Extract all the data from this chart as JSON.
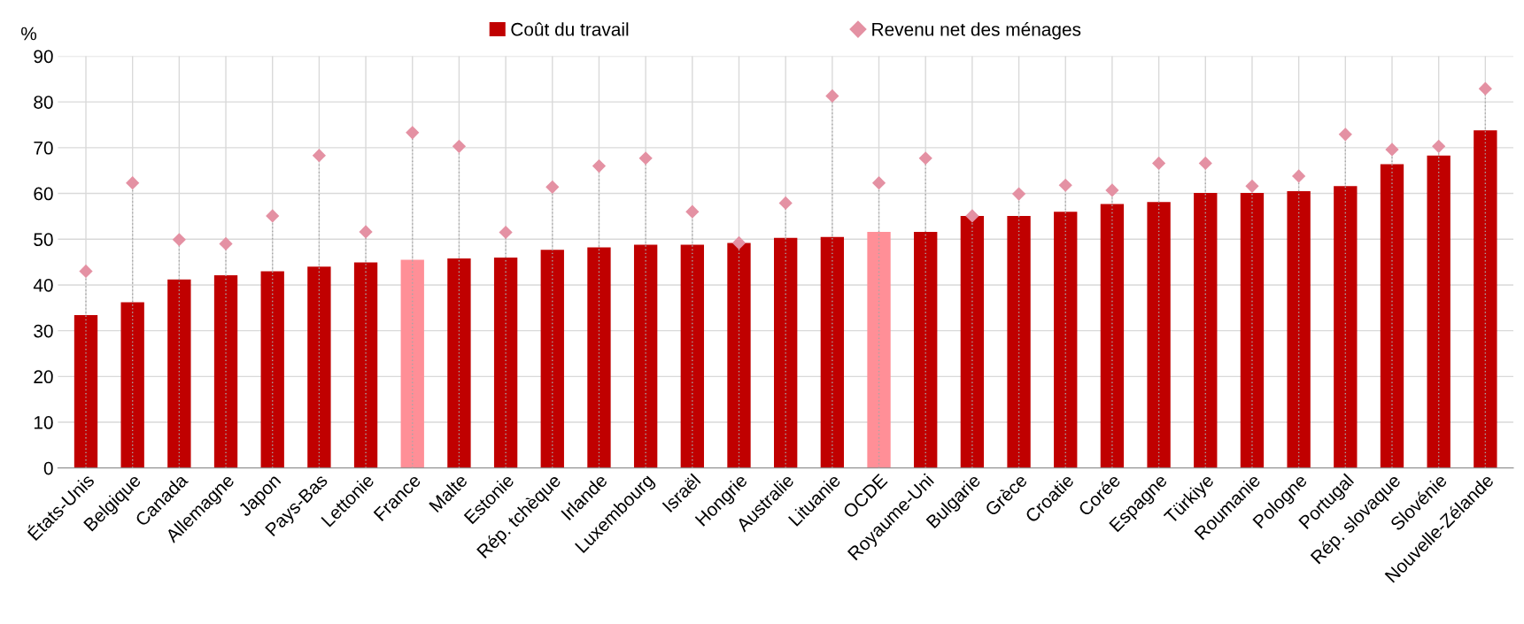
{
  "chart_data": {
    "type": "bar",
    "ylabel": "%",
    "categories": [
      "États-Unis",
      "Belgique",
      "Canada",
      "Allemagne",
      "Japon",
      "Pays-Bas",
      "Lettonie",
      "France",
      "Malte",
      "Estonie",
      "Rép. tchèque",
      "Irlande",
      "Luxembourg",
      "Israël",
      "Hongrie",
      "Australie",
      "Lituanie",
      "OCDE",
      "Royaume-Uni",
      "Bulgarie",
      "Grèce",
      "Croatie",
      "Corée",
      "Espagne",
      "Türkiye",
      "Roumanie",
      "Pologne",
      "Portugal",
      "Rép. slovaque",
      "Slovénie",
      "Nouvelle-Zélande"
    ],
    "series": [
      {
        "name": "Coût du travail",
        "color": "#c00000",
        "colors": [
          "#c00000",
          "#c00000",
          "#c00000",
          "#c00000",
          "#c00000",
          "#c00000",
          "#c00000",
          "#ff8f97",
          "#c00000",
          "#c00000",
          "#c00000",
          "#c00000",
          "#c00000",
          "#c00000",
          "#c00000",
          "#c00000",
          "#c00000",
          "#ff8f97",
          "#c00000",
          "#c00000",
          "#c00000",
          "#c00000",
          "#c00000",
          "#c00000",
          "#c00000",
          "#c00000",
          "#c00000",
          "#c00000",
          "#c00000",
          "#c00000",
          "#c00000"
        ],
        "values": [
          33.4,
          36.2,
          41.2,
          42.1,
          43.0,
          44.0,
          44.9,
          45.5,
          45.8,
          46.0,
          47.7,
          48.2,
          48.8,
          48.8,
          49.2,
          50.3,
          50.5,
          51.6,
          51.6,
          55.1,
          55.1,
          56.0,
          57.7,
          58.1,
          60.1,
          60.1,
          60.5,
          61.6,
          66.4,
          68.3,
          73.8
        ]
      },
      {
        "name": "Revenu net des ménages",
        "type": "scatter",
        "marker": "diamond",
        "color": "#e491a3",
        "values": [
          43.0,
          62.3,
          49.9,
          49.0,
          55.1,
          68.3,
          51.6,
          73.3,
          70.3,
          51.5,
          61.4,
          66.0,
          67.7,
          56.0,
          49.2,
          57.9,
          81.3,
          62.3,
          67.7,
          55.1,
          59.9,
          61.8,
          60.7,
          66.6,
          66.6,
          61.6,
          63.8,
          72.9,
          69.6,
          70.3,
          82.9
        ]
      }
    ],
    "ylim": [
      0,
      90
    ],
    "yticks": [
      0,
      10,
      20,
      30,
      40,
      50,
      60,
      70,
      80,
      90
    ],
    "grid": true,
    "legend": "top"
  }
}
